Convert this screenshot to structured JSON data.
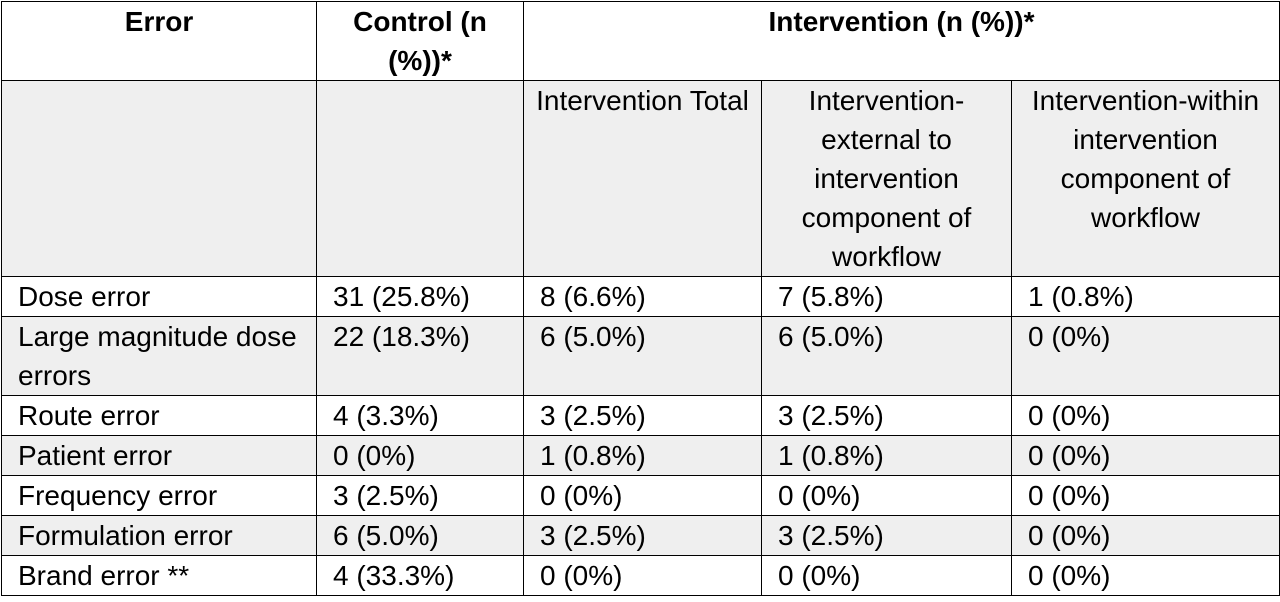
{
  "table": {
    "header": {
      "error": "Error",
      "control": "Control (n (%))*",
      "intervention": "Intervention (n (%))*"
    },
    "subheader": [
      "",
      "Intervention Total",
      "Intervention-external to intervention component of workflow",
      "Intervention-within intervention component of workflow"
    ],
    "rows": [
      {
        "label": "Dose error",
        "control": "31 (25.8%)",
        "total": "8 (6.6%)",
        "external": "7 (5.8%)",
        "within": "1 (0.8%)"
      },
      {
        "label": "Large magnitude dose errors",
        "control": "22 (18.3%)",
        "total": "6 (5.0%)",
        "external": "6 (5.0%)",
        "within": "0 (0%)"
      },
      {
        "label": "Route error",
        "control": "4 (3.3%)",
        "total": "3 (2.5%)",
        "external": "3 (2.5%)",
        "within": "0 (0%)"
      },
      {
        "label": "Patient error",
        "control": "0 (0%)",
        "total": "1 (0.8%)",
        "external": "1 (0.8%)",
        "within": "0 (0%)"
      },
      {
        "label": "Frequency error",
        "control": "3 (2.5%)",
        "total": "0 (0%)",
        "external": "0 (0%)",
        "within": "0 (0%)"
      },
      {
        "label": "Formulation error",
        "control": "6 (5.0%)",
        "total": "3 (2.5%)",
        "external": "3 (2.5%)",
        "within": "0 (0%)"
      },
      {
        "label": "Brand error **",
        "control": "4 (33.3%)",
        "total": "0 (0%)",
        "external": "0 (0%)",
        "within": "0 (0%)"
      }
    ]
  }
}
